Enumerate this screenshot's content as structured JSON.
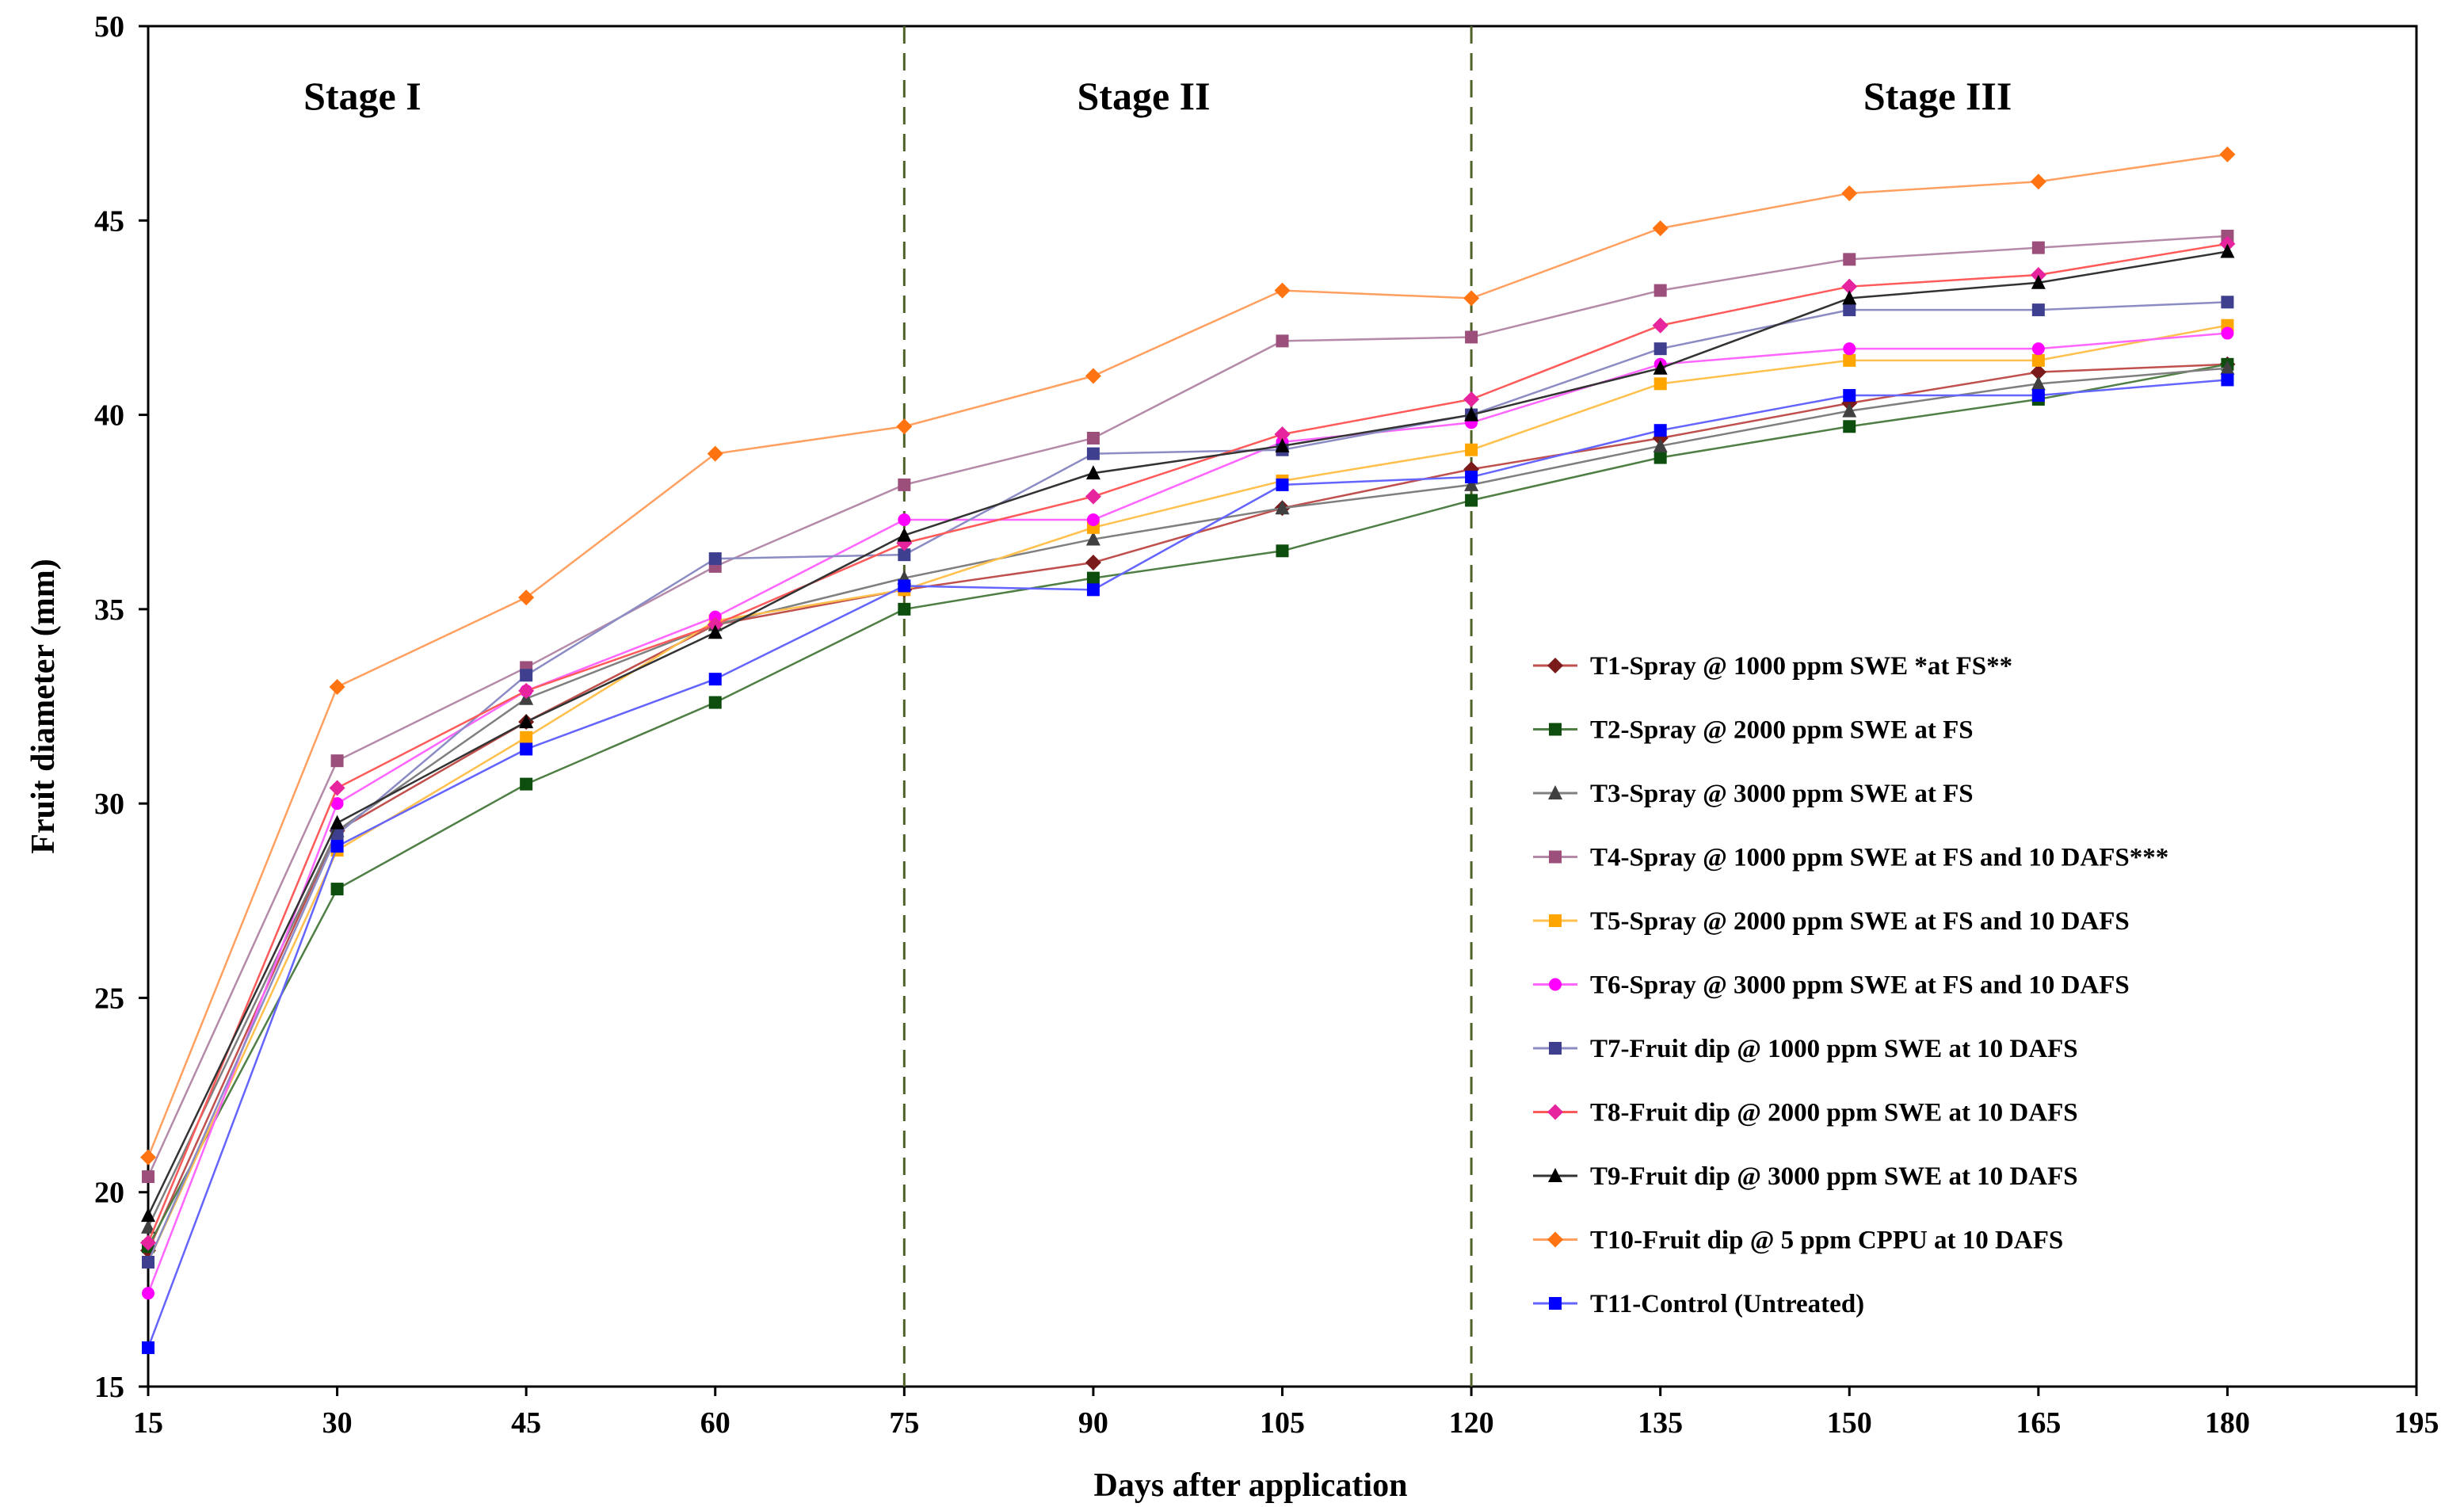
{
  "chart_data": {
    "type": "line",
    "xlabel": "Days after application",
    "ylabel": "Fruit diameter (mm)",
    "xlim": [
      15,
      195
    ],
    "ylim": [
      15,
      50
    ],
    "xticks": [
      15,
      30,
      45,
      60,
      75,
      90,
      105,
      120,
      135,
      150,
      165,
      180,
      195
    ],
    "yticks": [
      15,
      20,
      25,
      30,
      35,
      40,
      45,
      50
    ],
    "x": [
      15,
      30,
      45,
      60,
      75,
      90,
      105,
      120,
      135,
      150,
      165,
      180
    ],
    "stage_dividers": [
      75,
      120
    ],
    "stages": [
      {
        "label": "Stage I",
        "x": 32
      },
      {
        "label": "Stage II",
        "x": 94
      },
      {
        "label": "Stage III",
        "x": 157
      }
    ],
    "legend_position": "right",
    "series": [
      {
        "name": "T1-Spray @ 1000 ppm SWE *at FS**",
        "color": "#c0504d",
        "marker_color": "#7b1a1a",
        "marker": "diamond",
        "values": [
          18.5,
          29.3,
          32.1,
          34.6,
          35.5,
          36.2,
          37.6,
          38.6,
          39.4,
          40.3,
          41.1,
          41.3
        ]
      },
      {
        "name": "T2-Spray @ 2000 ppm SWE at FS",
        "color": "#4f7f45",
        "marker_color": "#0d4d0d",
        "marker": "square",
        "values": [
          18.6,
          27.8,
          30.5,
          32.6,
          35.0,
          35.8,
          36.5,
          37.8,
          38.9,
          39.7,
          40.4,
          41.3
        ]
      },
      {
        "name": "T3-Spray  @ 3000 ppm SWE at FS",
        "color": "#7f7f7f",
        "marker_color": "#404040",
        "marker": "triangle",
        "values": [
          19.1,
          29.3,
          32.7,
          34.6,
          35.8,
          36.8,
          37.6,
          38.2,
          39.2,
          40.1,
          40.8,
          41.2
        ]
      },
      {
        "name": "T4-Spray @ 1000 ppm SWE at FS and 10 DAFS***",
        "color": "#b48aa8",
        "marker_color": "#9b4f7a",
        "marker": "square",
        "values": [
          20.4,
          31.1,
          33.5,
          36.1,
          38.2,
          39.4,
          41.9,
          42.0,
          43.2,
          44.0,
          44.3,
          44.6
        ]
      },
      {
        "name": "T5-Spray @ 2000 ppm SWE at FS and 10 DAFS",
        "color": "#ffc04d",
        "marker_color": "#ffa500",
        "marker": "square",
        "values": [
          18.2,
          28.8,
          31.7,
          34.7,
          35.5,
          37.1,
          38.3,
          39.1,
          40.8,
          41.4,
          41.4,
          42.3
        ]
      },
      {
        "name": "T6-Spray @ 3000 ppm SWE at FS and 10 DAFS",
        "color": "#ff66ff",
        "marker_color": "#ff00ff",
        "marker": "circle",
        "values": [
          17.4,
          30.0,
          32.9,
          34.8,
          37.3,
          37.3,
          39.3,
          39.8,
          41.3,
          41.7,
          41.7,
          42.1
        ]
      },
      {
        "name": "T7-Fruit  dip @ 1000 ppm SWE at 10 DAFS",
        "color": "#8c8cc4",
        "marker_color": "#3f3f8f",
        "marker": "square",
        "values": [
          18.2,
          29.2,
          33.3,
          36.3,
          36.4,
          39.0,
          39.1,
          40.0,
          41.7,
          42.7,
          42.7,
          42.9
        ]
      },
      {
        "name": "T8-Fruit  dip @ 2000 ppm SWE at 10 DAFS",
        "color": "#ff5a5a",
        "marker_color": "#e6249e",
        "marker": "diamond",
        "values": [
          18.7,
          30.4,
          32.9,
          34.6,
          36.7,
          37.9,
          39.5,
          40.4,
          42.3,
          43.3,
          43.6,
          44.4
        ]
      },
      {
        "name": "T9-Fruit  dip @ 3000 ppm SWE at 10 DAFS",
        "color": "#333333",
        "marker_color": "#000000",
        "marker": "triangle",
        "values": [
          19.4,
          29.5,
          32.1,
          34.4,
          36.9,
          38.5,
          39.2,
          40.0,
          41.2,
          43.0,
          43.4,
          44.2
        ]
      },
      {
        "name": "T10-Fruit  dip @ 5 ppm CPPU at 10 DAFS",
        "color": "#ffa060",
        "marker_color": "#ff7410",
        "marker": "diamond",
        "values": [
          20.9,
          33.0,
          35.3,
          39.0,
          39.7,
          41.0,
          43.2,
          43.0,
          44.8,
          45.7,
          46.0,
          46.7
        ]
      },
      {
        "name": "T11-Control (Untreated)",
        "color": "#6464ff",
        "marker_color": "#0000ff",
        "marker": "square",
        "values": [
          16.0,
          28.9,
          31.4,
          33.2,
          35.6,
          35.5,
          38.2,
          38.4,
          39.6,
          40.5,
          40.5,
          40.9
        ]
      }
    ]
  }
}
